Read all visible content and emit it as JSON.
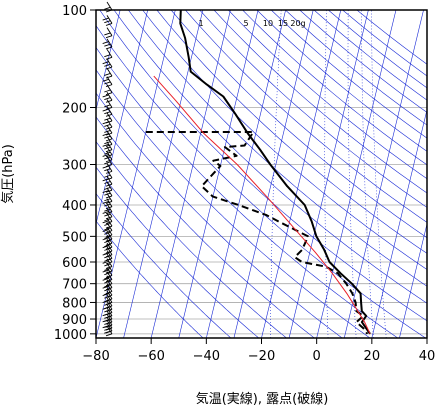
{
  "chart_data": {
    "type": "line",
    "title": "",
    "xlabel": "気温(実線), 露点(破線)",
    "ylabel": "気圧(hPa)",
    "xlim": [
      -80,
      40
    ],
    "ylim": [
      1030,
      100
    ],
    "y_scale": "log",
    "x_ticks": [
      -80,
      -60,
      -40,
      -20,
      0,
      20,
      40
    ],
    "x_tick_labels": [
      "−80",
      "−60",
      "−40",
      "−20",
      "0",
      "20",
      "40"
    ],
    "y_ticks": [
      100,
      200,
      300,
      400,
      500,
      600,
      700,
      800,
      900,
      1000
    ],
    "y_tick_labels": [
      "100",
      "200",
      "300",
      "400",
      "500",
      "600",
      "700",
      "800",
      "900",
      "1000"
    ],
    "mixing_ratio_labels": [
      "1",
      "5",
      "10",
      "15",
      "20g"
    ],
    "colors": {
      "temperature": "#000000",
      "dewpoint": "#000000",
      "parcel": "#e8202a",
      "isotherm": "#1a2bd6",
      "adiabat": "#1a2bd6",
      "grid": "#aaaaaa",
      "wind": "#000000"
    },
    "series": [
      {
        "role": "temperature",
        "style": "solid",
        "points": [
          [
            -78,
            100
          ],
          [
            -77,
            110
          ],
          [
            -74,
            122
          ],
          [
            -71,
            140
          ],
          [
            -69,
            155
          ],
          [
            -62,
            170
          ],
          [
            -55,
            185
          ],
          [
            -49,
            210
          ],
          [
            -43,
            240
          ],
          [
            -37,
            270
          ],
          [
            -32,
            300
          ],
          [
            -24,
            350
          ],
          [
            -16,
            400
          ],
          [
            -12,
            450
          ],
          [
            -9,
            500
          ],
          [
            -5,
            550
          ],
          [
            -2,
            600
          ],
          [
            3,
            650
          ],
          [
            8,
            700
          ],
          [
            12,
            750
          ],
          [
            13,
            800
          ],
          [
            14,
            850
          ],
          [
            16,
            880
          ],
          [
            15,
            920
          ],
          [
            17,
            960
          ],
          [
            19,
            1000
          ]
        ]
      },
      {
        "role": "dewpoint",
        "style": "dashed",
        "points": [
          [
            -80,
            238
          ],
          [
            -41,
            238
          ],
          [
            -43,
            262
          ],
          [
            -50,
            265
          ],
          [
            -45,
            282
          ],
          [
            -53,
            292
          ],
          [
            -50,
            303
          ],
          [
            -55,
            350
          ],
          [
            -50,
            377
          ],
          [
            -40,
            400
          ],
          [
            -29,
            430
          ],
          [
            -24,
            450
          ],
          [
            -12,
            500
          ],
          [
            -13,
            550
          ],
          [
            -15,
            580
          ],
          [
            -12,
            600
          ],
          [
            -3,
            620
          ],
          [
            2,
            650
          ],
          [
            6,
            700
          ],
          [
            9,
            750
          ],
          [
            11,
            800
          ],
          [
            12,
            850
          ],
          [
            15,
            880
          ],
          [
            13,
            920
          ],
          [
            16,
            960
          ],
          [
            18,
            1000
          ]
        ]
      },
      {
        "role": "parcel",
        "style": "solid",
        "points": [
          [
            -82,
            160
          ],
          [
            -72,
            190
          ],
          [
            -59,
            240
          ],
          [
            -44,
            300
          ],
          [
            -30,
            380
          ],
          [
            -18,
            470
          ],
          [
            -8,
            560
          ],
          [
            0,
            650
          ],
          [
            7,
            750
          ],
          [
            12,
            840
          ],
          [
            16,
            920
          ],
          [
            19,
            1000
          ]
        ]
      }
    ],
    "wind_levels": [
      100,
      110,
      120,
      130,
      140,
      150,
      160,
      170,
      180,
      190,
      200,
      210,
      220,
      230,
      240,
      250,
      260,
      270,
      280,
      290,
      300,
      315,
      330,
      345,
      360,
      375,
      390,
      405,
      420,
      435,
      450,
      465,
      480,
      495,
      510,
      525,
      540,
      555,
      570,
      585,
      600,
      620,
      640,
      660,
      680,
      700,
      720,
      740,
      760,
      780,
      800,
      820,
      840,
      860,
      880,
      900,
      920,
      940,
      960,
      980,
      1000
    ]
  }
}
